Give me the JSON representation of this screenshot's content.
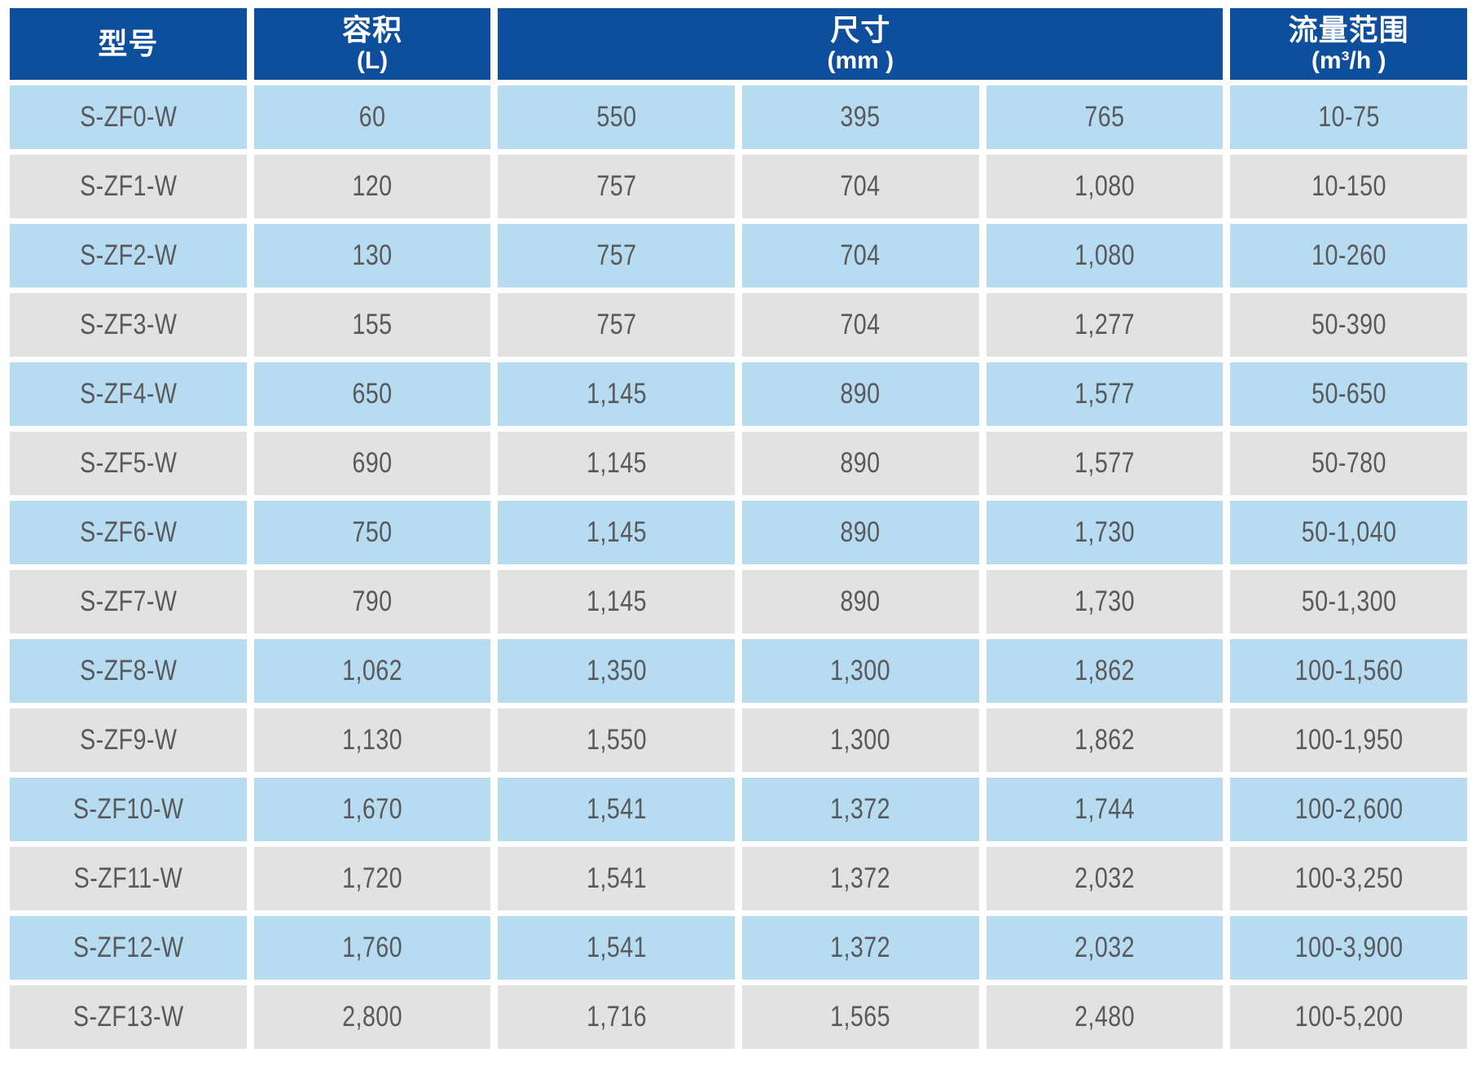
{
  "colors": {
    "header_bg": "#0D4E9D",
    "header_text": "#FFFFFF",
    "row_blue": "#B7DBF1",
    "row_gray": "#E2E2E2",
    "cell_text": "#58595B",
    "page_bg": "#FFFFFF"
  },
  "table": {
    "header": [
      {
        "label": "型号",
        "sub": "",
        "span": 1
      },
      {
        "label": "容积",
        "sub": "(L)",
        "span": 1
      },
      {
        "label": "尺寸",
        "sub": "(mm )",
        "span": 3
      },
      {
        "label": "流量范围",
        "sub": "(m³/h )",
        "span": 1
      }
    ],
    "fields": [
      "model",
      "volume",
      "dim1",
      "dim2",
      "dim3",
      "flow"
    ],
    "rows": [
      {
        "model": "S-ZF0-W",
        "volume": "60",
        "dim1": "550",
        "dim2": "395",
        "dim3": "765",
        "flow": "10-75"
      },
      {
        "model": "S-ZF1-W",
        "volume": "120",
        "dim1": "757",
        "dim2": "704",
        "dim3": "1,080",
        "flow": "10-150"
      },
      {
        "model": "S-ZF2-W",
        "volume": "130",
        "dim1": "757",
        "dim2": "704",
        "dim3": "1,080",
        "flow": "10-260"
      },
      {
        "model": "S-ZF3-W",
        "volume": "155",
        "dim1": "757",
        "dim2": "704",
        "dim3": "1,277",
        "flow": "50-390"
      },
      {
        "model": "S-ZF4-W",
        "volume": "650",
        "dim1": "1,145",
        "dim2": "890",
        "dim3": "1,577",
        "flow": "50-650"
      },
      {
        "model": "S-ZF5-W",
        "volume": "690",
        "dim1": "1,145",
        "dim2": "890",
        "dim3": "1,577",
        "flow": "50-780"
      },
      {
        "model": "S-ZF6-W",
        "volume": "750",
        "dim1": "1,145",
        "dim2": "890",
        "dim3": "1,730",
        "flow": "50-1,040"
      },
      {
        "model": "S-ZF7-W",
        "volume": "790",
        "dim1": "1,145",
        "dim2": "890",
        "dim3": "1,730",
        "flow": "50-1,300"
      },
      {
        "model": "S-ZF8-W",
        "volume": "1,062",
        "dim1": "1,350",
        "dim2": "1,300",
        "dim3": "1,862",
        "flow": "100-1,560"
      },
      {
        "model": "S-ZF9-W",
        "volume": "1,130",
        "dim1": "1,550",
        "dim2": "1,300",
        "dim3": "1,862",
        "flow": "100-1,950"
      },
      {
        "model": "S-ZF10-W",
        "volume": "1,670",
        "dim1": "1,541",
        "dim2": "1,372",
        "dim3": "1,744",
        "flow": "100-2,600"
      },
      {
        "model": "S-ZF11-W",
        "volume": "1,720",
        "dim1": "1,541",
        "dim2": "1,372",
        "dim3": "2,032",
        "flow": "100-3,250"
      },
      {
        "model": "S-ZF12-W",
        "volume": "1,760",
        "dim1": "1,541",
        "dim2": "1,372",
        "dim3": "2,032",
        "flow": "100-3,900"
      },
      {
        "model": "S-ZF13-W",
        "volume": "2,800",
        "dim1": "1,716",
        "dim2": "1,565",
        "dim3": "2,480",
        "flow": "100-5,200"
      }
    ]
  }
}
